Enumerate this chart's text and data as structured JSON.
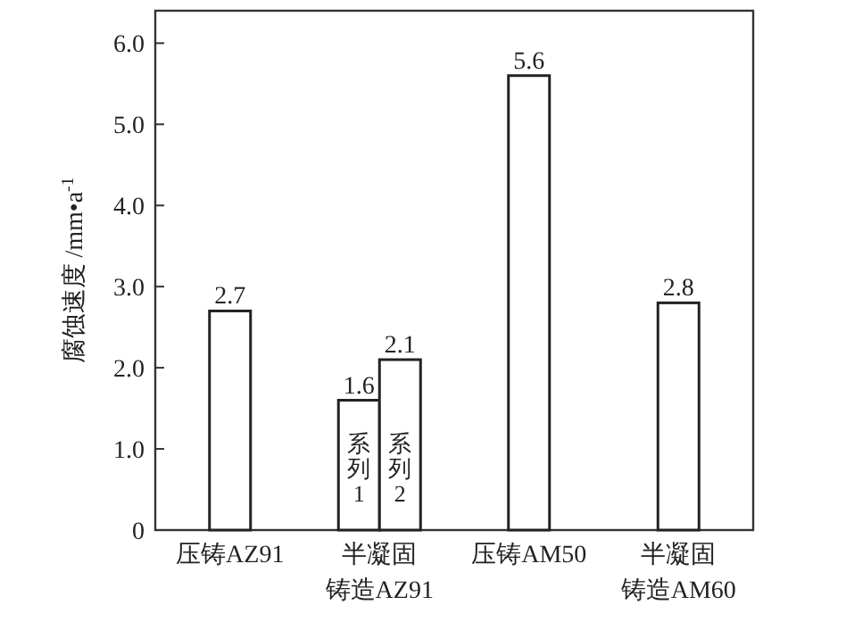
{
  "chart_data": {
    "type": "bar",
    "ylabel": "腐蚀速度 /mm•a$^{-1}$",
    "categories": [
      "压铸AZ91",
      "半凝固铸造AZ91",
      "压铸AM50",
      "半凝固铸造AM60"
    ],
    "series": [
      {
        "name": "系列1",
        "color": "#ffffff",
        "values": [
          2.7,
          1.6,
          5.6,
          2.8
        ]
      },
      {
        "name": "系列2",
        "color": "#ffffff",
        "values": [
          null,
          2.1,
          null,
          null
        ]
      }
    ],
    "ylim": [
      0,
      6.4
    ],
    "yticks": [
      0,
      {
        "value": 1,
        "label": "1.0"
      },
      {
        "value": 2,
        "label": "2.0"
      },
      {
        "value": 3,
        "label": "3.0"
      },
      {
        "value": 4,
        "label": "4.0"
      },
      {
        "value": 5,
        "label": "5.0"
      },
      {
        "value": 6,
        "label": "6.0"
      }
    ],
    "data_labels": true,
    "grid": false
  }
}
